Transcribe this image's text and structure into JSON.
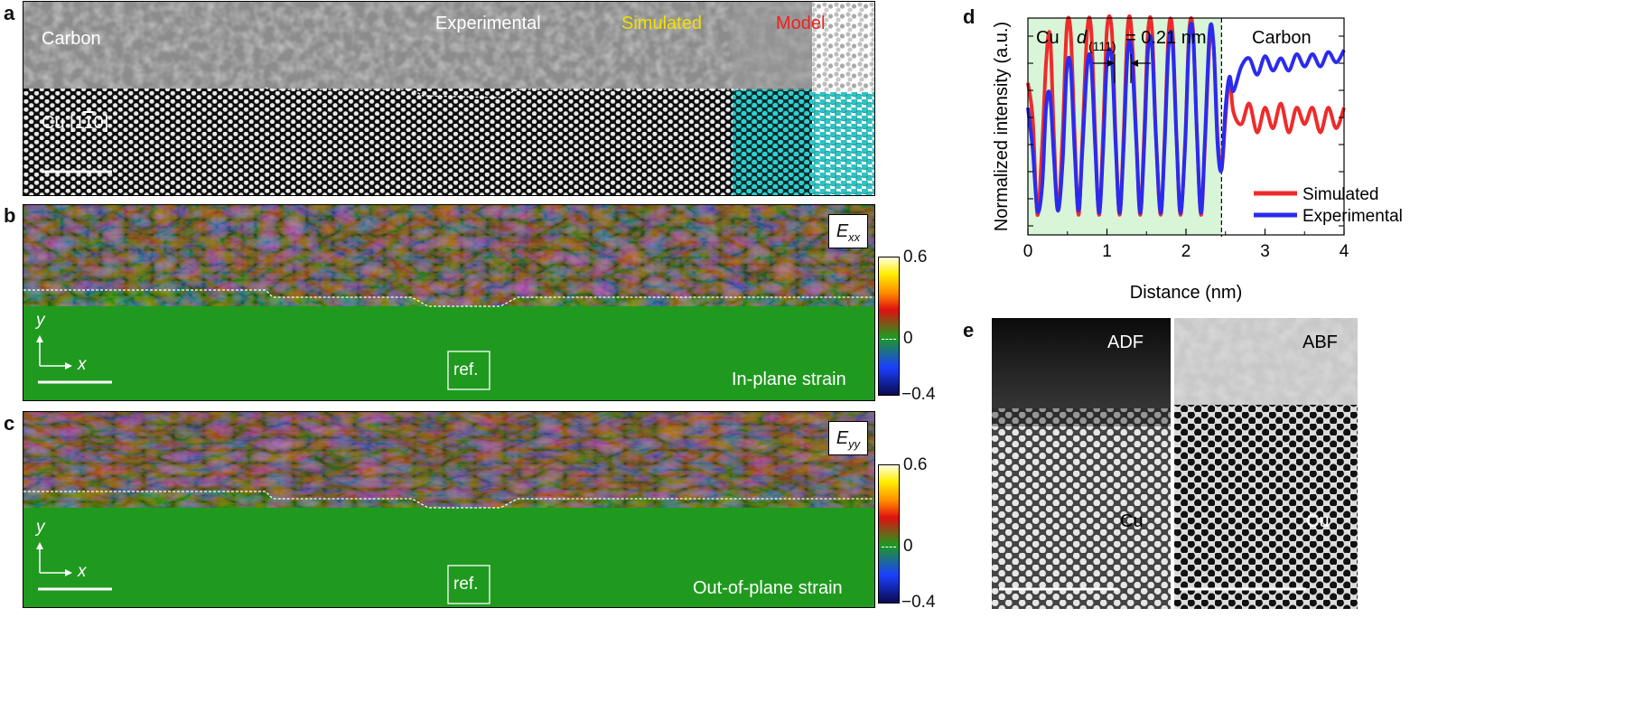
{
  "panels": {
    "a": {
      "label": "a",
      "carbon": "Carbon",
      "cu_prefix": "Cu [1",
      "cu_bar1": "1",
      "cu_mid": "",
      "cu_suffix": "0]",
      "experimental": "Experimental",
      "simulated": "Simulated",
      "model": "Model"
    },
    "b": {
      "label": "b",
      "component_main": "E",
      "component_sub": "xx",
      "ref": "ref.",
      "caption": "In-plane strain",
      "axis_y": "y",
      "axis_x": "x",
      "colorbar_ticks": [
        "0.6",
        "0",
        "−0.4"
      ]
    },
    "c": {
      "label": "c",
      "component_main": "E",
      "component_sub": "yy",
      "ref": "ref.",
      "caption": "Out-of-plane strain",
      "axis_y": "y",
      "axis_x": "x",
      "colorbar_ticks": [
        "0.6",
        "0",
        "−0.4"
      ]
    },
    "d": {
      "label": "d",
      "region_cu": "Cu",
      "region_carbon": "Carbon",
      "annotation_d": "d",
      "annotation_sub": "(111)",
      "annotation_value": "= 0.21 nm"
    },
    "e": {
      "label": "e",
      "left_title": "ADF",
      "right_title": "ABF",
      "left_cu": "Cu",
      "right_cu": "Cu"
    }
  },
  "colors": {
    "simulated": "#ee2b2b",
    "experimental": "#2b2bee",
    "cu_region": "#d8f5d8",
    "strain_green": "#1f9a1f",
    "simulated_label": "#f2e000",
    "model_label": "#ee2020",
    "model_cu_atom": "#22c6c6"
  },
  "chart_data": {
    "type": "line",
    "title": "",
    "xlabel": "Distance (nm)",
    "ylabel": "Normalized intensity (a.u.)",
    "xlim": [
      0,
      4
    ],
    "xticks": [
      "0",
      "1",
      "2",
      "3",
      "4"
    ],
    "interface_x": 2.45,
    "legend_position": "right",
    "series": [
      {
        "name": "Simulated",
        "color": "#ee2b2b",
        "x": [
          0.0,
          0.06,
          0.12,
          0.18,
          0.23,
          0.28,
          0.33,
          0.38,
          0.44,
          0.49,
          0.54,
          0.59,
          0.64,
          0.69,
          0.75,
          0.8,
          0.85,
          0.9,
          0.95,
          1.0,
          1.06,
          1.11,
          1.16,
          1.21,
          1.26,
          1.31,
          1.37,
          1.42,
          1.47,
          1.52,
          1.57,
          1.62,
          1.68,
          1.73,
          1.78,
          1.83,
          1.88,
          1.93,
          1.99,
          2.04,
          2.09,
          2.14,
          2.19,
          2.24,
          2.3,
          2.35,
          2.4,
          2.45,
          2.5,
          2.55,
          2.6,
          2.7,
          2.8,
          2.9,
          3.0,
          3.1,
          3.2,
          3.3,
          3.4,
          3.5,
          3.6,
          3.7,
          3.8,
          3.9,
          4.0
        ],
        "y": [
          0.72,
          0.55,
          0.08,
          0.42,
          0.82,
          0.95,
          0.45,
          0.1,
          0.48,
          0.98,
          0.97,
          0.48,
          0.08,
          0.46,
          0.97,
          0.98,
          0.48,
          0.08,
          0.46,
          0.98,
          0.98,
          0.46,
          0.08,
          0.46,
          0.98,
          0.98,
          0.47,
          0.08,
          0.46,
          0.97,
          0.98,
          0.46,
          0.08,
          0.46,
          0.97,
          0.97,
          0.46,
          0.08,
          0.44,
          0.97,
          0.97,
          0.46,
          0.08,
          0.42,
          0.92,
          0.9,
          0.46,
          0.3,
          0.55,
          0.74,
          0.58,
          0.52,
          0.62,
          0.48,
          0.6,
          0.5,
          0.62,
          0.48,
          0.6,
          0.52,
          0.6,
          0.48,
          0.6,
          0.5,
          0.6
        ]
      },
      {
        "name": "Experimental",
        "color": "#2b2bee",
        "x": [
          0.0,
          0.06,
          0.12,
          0.18,
          0.23,
          0.28,
          0.33,
          0.38,
          0.44,
          0.49,
          0.54,
          0.59,
          0.64,
          0.69,
          0.75,
          0.8,
          0.85,
          0.9,
          0.95,
          1.0,
          1.06,
          1.11,
          1.16,
          1.21,
          1.26,
          1.31,
          1.37,
          1.42,
          1.47,
          1.52,
          1.57,
          1.62,
          1.68,
          1.73,
          1.78,
          1.83,
          1.88,
          1.93,
          1.99,
          2.04,
          2.09,
          2.14,
          2.19,
          2.24,
          2.3,
          2.35,
          2.4,
          2.45,
          2.5,
          2.55,
          2.6,
          2.7,
          2.8,
          2.9,
          3.0,
          3.1,
          3.2,
          3.3,
          3.4,
          3.5,
          3.6,
          3.7,
          3.8,
          3.9,
          4.0
        ],
        "y": [
          0.6,
          0.4,
          0.1,
          0.22,
          0.6,
          0.66,
          0.35,
          0.1,
          0.34,
          0.78,
          0.8,
          0.4,
          0.1,
          0.4,
          0.8,
          0.82,
          0.42,
          0.09,
          0.38,
          0.82,
          0.84,
          0.42,
          0.09,
          0.4,
          0.86,
          0.88,
          0.44,
          0.09,
          0.4,
          0.88,
          0.9,
          0.45,
          0.09,
          0.42,
          0.9,
          0.92,
          0.45,
          0.09,
          0.42,
          0.94,
          0.95,
          0.45,
          0.09,
          0.45,
          0.97,
          0.9,
          0.42,
          0.3,
          0.6,
          0.75,
          0.68,
          0.8,
          0.84,
          0.76,
          0.85,
          0.78,
          0.84,
          0.78,
          0.86,
          0.8,
          0.86,
          0.8,
          0.87,
          0.82,
          0.88
        ]
      }
    ]
  }
}
